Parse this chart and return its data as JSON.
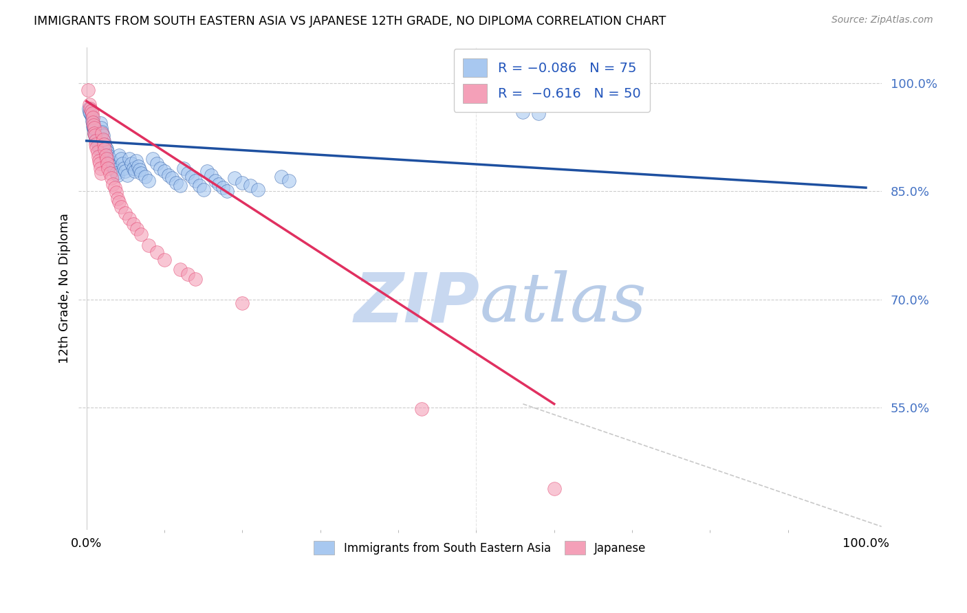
{
  "title": "IMMIGRANTS FROM SOUTH EASTERN ASIA VS JAPANESE 12TH GRADE, NO DIPLOMA CORRELATION CHART",
  "source": "Source: ZipAtlas.com",
  "ylabel": "12th Grade, No Diploma",
  "legend_blue_label": "Immigrants from South Eastern Asia",
  "legend_pink_label": "Japanese",
  "blue_color": "#A8C8F0",
  "pink_color": "#F4A0B8",
  "blue_line_color": "#1E50A0",
  "pink_line_color": "#E03060",
  "watermark_zip": "ZIP",
  "watermark_atlas": "atlas",
  "watermark_color": "#D0E4FF",
  "blue_scatter": [
    [
      0.003,
      0.965
    ],
    [
      0.004,
      0.96
    ],
    [
      0.005,
      0.958
    ],
    [
      0.006,
      0.955
    ],
    [
      0.007,
      0.952
    ],
    [
      0.007,
      0.948
    ],
    [
      0.008,
      0.945
    ],
    [
      0.008,
      0.94
    ],
    [
      0.009,
      0.938
    ],
    [
      0.01,
      0.935
    ],
    [
      0.01,
      0.93
    ],
    [
      0.011,
      0.928
    ],
    [
      0.012,
      0.925
    ],
    [
      0.013,
      0.922
    ],
    [
      0.014,
      0.918
    ],
    [
      0.015,
      0.915
    ],
    [
      0.016,
      0.912
    ],
    [
      0.017,
      0.908
    ],
    [
      0.018,
      0.945
    ],
    [
      0.019,
      0.938
    ],
    [
      0.02,
      0.932
    ],
    [
      0.021,
      0.928
    ],
    [
      0.022,
      0.92
    ],
    [
      0.023,
      0.915
    ],
    [
      0.025,
      0.91
    ],
    [
      0.026,
      0.908
    ],
    [
      0.027,
      0.905
    ],
    [
      0.028,
      0.9
    ],
    [
      0.03,
      0.895
    ],
    [
      0.032,
      0.89
    ],
    [
      0.034,
      0.885
    ],
    [
      0.036,
      0.88
    ],
    [
      0.038,
      0.875
    ],
    [
      0.04,
      0.872
    ],
    [
      0.042,
      0.9
    ],
    [
      0.044,
      0.895
    ],
    [
      0.046,
      0.888
    ],
    [
      0.048,
      0.882
    ],
    [
      0.05,
      0.878
    ],
    [
      0.052,
      0.872
    ],
    [
      0.055,
      0.895
    ],
    [
      0.058,
      0.888
    ],
    [
      0.06,
      0.882
    ],
    [
      0.062,
      0.878
    ],
    [
      0.064,
      0.892
    ],
    [
      0.066,
      0.885
    ],
    [
      0.068,
      0.88
    ],
    [
      0.07,
      0.875
    ],
    [
      0.075,
      0.87
    ],
    [
      0.08,
      0.865
    ],
    [
      0.085,
      0.895
    ],
    [
      0.09,
      0.888
    ],
    [
      0.095,
      0.882
    ],
    [
      0.1,
      0.878
    ],
    [
      0.105,
      0.872
    ],
    [
      0.11,
      0.868
    ],
    [
      0.115,
      0.862
    ],
    [
      0.12,
      0.858
    ],
    [
      0.125,
      0.882
    ],
    [
      0.13,
      0.875
    ],
    [
      0.135,
      0.87
    ],
    [
      0.14,
      0.865
    ],
    [
      0.145,
      0.858
    ],
    [
      0.15,
      0.852
    ],
    [
      0.155,
      0.878
    ],
    [
      0.16,
      0.872
    ],
    [
      0.165,
      0.865
    ],
    [
      0.17,
      0.86
    ],
    [
      0.175,
      0.855
    ],
    [
      0.18,
      0.85
    ],
    [
      0.19,
      0.868
    ],
    [
      0.2,
      0.862
    ],
    [
      0.21,
      0.858
    ],
    [
      0.22,
      0.852
    ],
    [
      0.25,
      0.87
    ],
    [
      0.26,
      0.865
    ],
    [
      0.56,
      0.96
    ],
    [
      0.58,
      0.958
    ]
  ],
  "pink_scatter": [
    [
      0.002,
      0.99
    ],
    [
      0.004,
      0.97
    ],
    [
      0.005,
      0.965
    ],
    [
      0.006,
      0.962
    ],
    [
      0.007,
      0.958
    ],
    [
      0.008,
      0.952
    ],
    [
      0.008,
      0.946
    ],
    [
      0.009,
      0.942
    ],
    [
      0.01,
      0.938
    ],
    [
      0.01,
      0.93
    ],
    [
      0.011,
      0.928
    ],
    [
      0.012,
      0.92
    ],
    [
      0.012,
      0.915
    ],
    [
      0.013,
      0.91
    ],
    [
      0.014,
      0.905
    ],
    [
      0.015,
      0.898
    ],
    [
      0.016,
      0.892
    ],
    [
      0.017,
      0.888
    ],
    [
      0.018,
      0.882
    ],
    [
      0.019,
      0.875
    ],
    [
      0.02,
      0.93
    ],
    [
      0.021,
      0.922
    ],
    [
      0.022,
      0.915
    ],
    [
      0.023,
      0.908
    ],
    [
      0.025,
      0.9
    ],
    [
      0.026,
      0.895
    ],
    [
      0.027,
      0.888
    ],
    [
      0.028,
      0.882
    ],
    [
      0.03,
      0.875
    ],
    [
      0.032,
      0.868
    ],
    [
      0.034,
      0.86
    ],
    [
      0.036,
      0.855
    ],
    [
      0.038,
      0.848
    ],
    [
      0.04,
      0.84
    ],
    [
      0.042,
      0.835
    ],
    [
      0.044,
      0.828
    ],
    [
      0.05,
      0.82
    ],
    [
      0.055,
      0.812
    ],
    [
      0.06,
      0.805
    ],
    [
      0.065,
      0.798
    ],
    [
      0.07,
      0.79
    ],
    [
      0.08,
      0.775
    ],
    [
      0.09,
      0.765
    ],
    [
      0.1,
      0.755
    ],
    [
      0.12,
      0.742
    ],
    [
      0.13,
      0.735
    ],
    [
      0.14,
      0.728
    ],
    [
      0.2,
      0.695
    ],
    [
      0.43,
      0.548
    ],
    [
      0.6,
      0.438
    ]
  ],
  "blue_line_x": [
    0.0,
    1.0
  ],
  "blue_line_y": [
    0.92,
    0.855
  ],
  "pink_line_x": [
    0.0,
    0.6
  ],
  "pink_line_y": [
    0.975,
    0.555
  ],
  "diag_line_x": [
    0.56,
    1.02
  ],
  "diag_line_y": [
    0.555,
    0.385
  ],
  "xlim": [
    -0.01,
    1.02
  ],
  "ylim": [
    0.38,
    1.05
  ],
  "yticks": [
    0.55,
    0.7,
    0.85,
    1.0
  ],
  "ytick_labels": [
    "55.0%",
    "70.0%",
    "85.0%",
    "100.0%"
  ],
  "xtick_positions": [
    0.0,
    1.0
  ],
  "xtick_labels": [
    "0.0%",
    "100.0%"
  ]
}
